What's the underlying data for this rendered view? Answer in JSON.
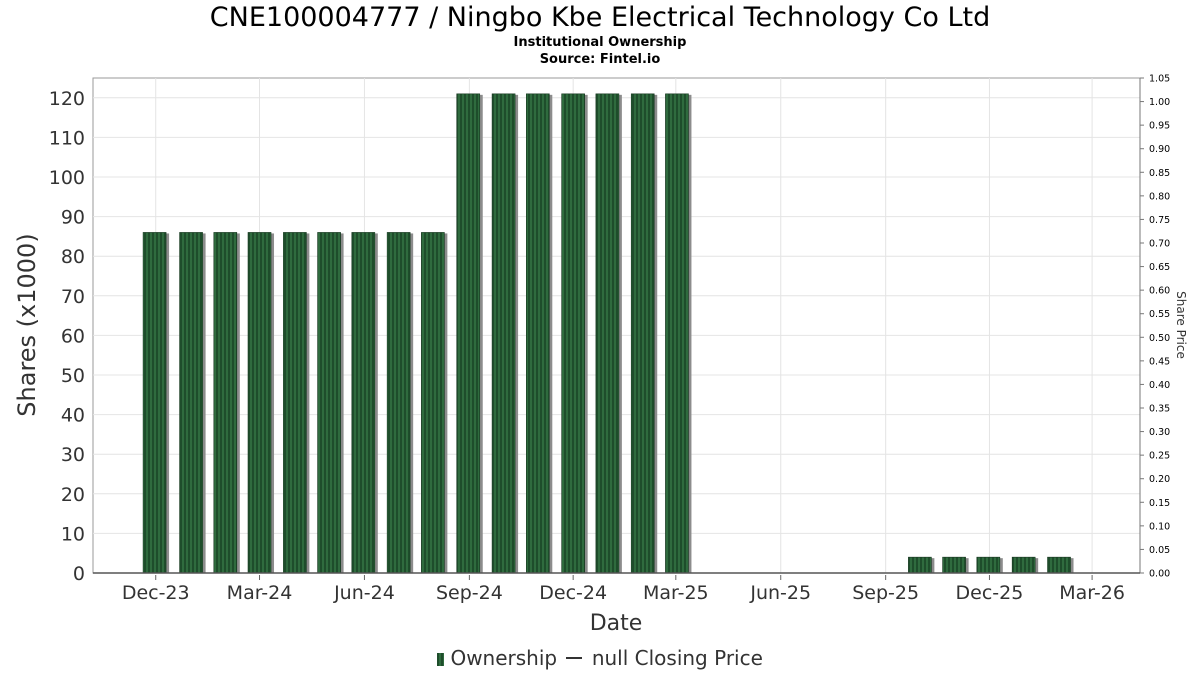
{
  "title": "CNE100004777 / Ningbo Kbe Electrical Technology Co Ltd",
  "subtitle1": "Institutional Ownership",
  "subtitle2": "Source: Fintel.io",
  "legend": {
    "ownership_label": "Ownership",
    "price_label": "null Closing Price"
  },
  "colors": {
    "bar": "#1e4d2b",
    "bar_stripe": "#2f6b3e",
    "bar_shadow": "#8c8c8c",
    "grid": "#e4e4e4"
  },
  "chart_data": {
    "type": "bar",
    "xlabel": "Date",
    "ylabel": "Shares (x1000)",
    "y2label": "Share Price",
    "ylim": [
      0,
      125
    ],
    "y2lim": [
      0,
      1.05
    ],
    "yticks": [
      0,
      10,
      20,
      30,
      40,
      50,
      60,
      70,
      80,
      90,
      100,
      110,
      120
    ],
    "y2ticks": [
      "0.00",
      "0.05",
      "0.10",
      "0.15",
      "0.20",
      "0.25",
      "0.30",
      "0.35",
      "0.40",
      "0.45",
      "0.50",
      "0.55",
      "0.60",
      "0.65",
      "0.70",
      "0.75",
      "0.80",
      "0.85",
      "0.90",
      "0.95",
      "1.00",
      "1.05"
    ],
    "xlim": [
      "2023-10-07",
      "2026-04-12"
    ],
    "xticks": [
      {
        "date": "2023-12-01",
        "label": "Dec-23"
      },
      {
        "date": "2024-03-01",
        "label": "Mar-24"
      },
      {
        "date": "2024-06-01",
        "label": "Jun-24"
      },
      {
        "date": "2024-09-01",
        "label": "Sep-24"
      },
      {
        "date": "2024-12-01",
        "label": "Dec-24"
      },
      {
        "date": "2025-03-01",
        "label": "Mar-25"
      },
      {
        "date": "2025-06-01",
        "label": "Jun-25"
      },
      {
        "date": "2025-09-01",
        "label": "Sep-25"
      },
      {
        "date": "2025-12-01",
        "label": "Dec-25"
      },
      {
        "date": "2026-03-01",
        "label": "Mar-26"
      }
    ],
    "grid": true,
    "legend_position": "bottom",
    "series": [
      {
        "name": "Ownership",
        "points": [
          {
            "x": "2023-11-30",
            "y": 86
          },
          {
            "x": "2024-01-01",
            "y": 86
          },
          {
            "x": "2024-01-31",
            "y": 86
          },
          {
            "x": "2024-03-01",
            "y": 86
          },
          {
            "x": "2024-04-01",
            "y": 86
          },
          {
            "x": "2024-05-01",
            "y": 86
          },
          {
            "x": "2024-05-31",
            "y": 86
          },
          {
            "x": "2024-07-01",
            "y": 86
          },
          {
            "x": "2024-07-31",
            "y": 86
          },
          {
            "x": "2024-08-31",
            "y": 121
          },
          {
            "x": "2024-10-01",
            "y": 121
          },
          {
            "x": "2024-10-31",
            "y": 121
          },
          {
            "x": "2024-12-01",
            "y": 121
          },
          {
            "x": "2024-12-31",
            "y": 121
          },
          {
            "x": "2025-01-31",
            "y": 121
          },
          {
            "x": "2025-03-02",
            "y": 121
          },
          {
            "x": "2025-10-01",
            "y": 4
          },
          {
            "x": "2025-10-31",
            "y": 4
          },
          {
            "x": "2025-11-30",
            "y": 4
          },
          {
            "x": "2025-12-31",
            "y": 4
          },
          {
            "x": "2026-01-31",
            "y": 4
          }
        ]
      }
    ]
  }
}
